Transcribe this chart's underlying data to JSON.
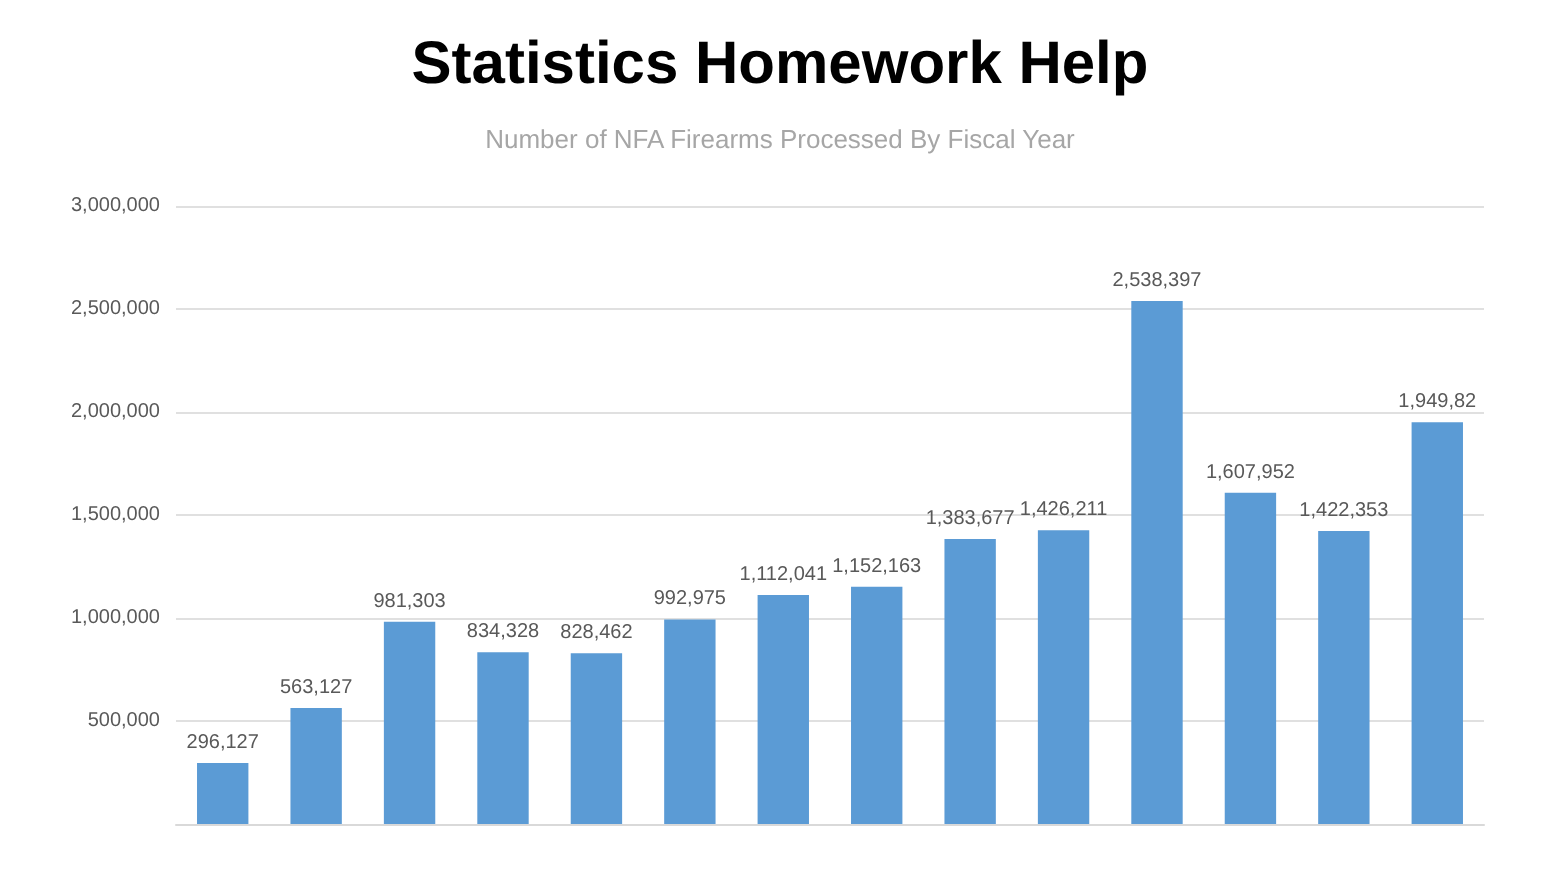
{
  "chart_data": {
    "type": "bar",
    "title": "Statistics Homework Help",
    "subtitle": "Number of NFA Firearms Processed By Fiscal Year",
    "categories": [
      null,
      null,
      null,
      null,
      null,
      null,
      null,
      null,
      null,
      null,
      null,
      null,
      null,
      null
    ],
    "values": [
      296127,
      563127,
      981303,
      834328,
      828462,
      992975,
      1112041,
      1152163,
      1383677,
      1426211,
      2538397,
      1607952,
      1422353,
      1950000
    ],
    "value_labels": [
      "296,127",
      "563,127",
      "981,303",
      "834,328",
      "828,462",
      "992,975",
      "1,112,041",
      "1,152,163",
      "1,383,677",
      "1,426,211",
      "2,538,397",
      "1,607,952",
      "1,422,353",
      "1,949,82"
    ],
    "color": "#5b9bd5",
    "ylim": [
      0,
      3000000
    ],
    "yticks": [
      {
        "value": 500000,
        "label": "500,000"
      },
      {
        "value": 1000000,
        "label": "1,000,000"
      },
      {
        "value": 1500000,
        "label": "1,500,000"
      },
      {
        "value": 2000000,
        "label": "2,000,000"
      },
      {
        "value": 2500000,
        "label": "2,500,000"
      },
      {
        "value": 3000000,
        "label": "3,000,000"
      }
    ],
    "grid": "y"
  }
}
